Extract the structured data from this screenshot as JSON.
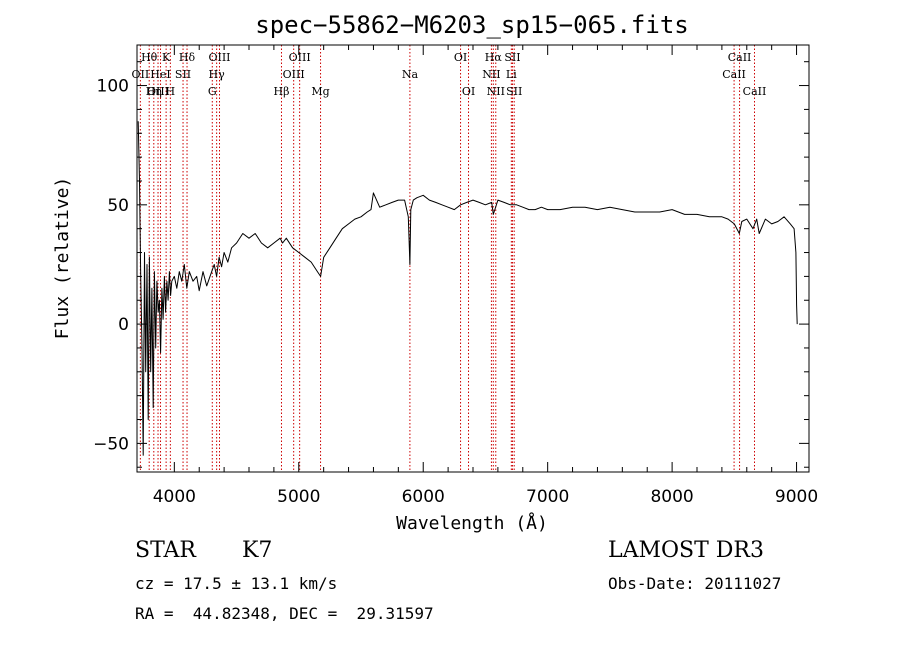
{
  "chart_data": {
    "type": "line",
    "title": "spec−55862−M6203_sp15−065.fits",
    "xlabel": "Wavelength (Å)",
    "ylabel": "Flux (relative)",
    "xlim": [
      3700,
      9100
    ],
    "ylim": [
      -62,
      117
    ],
    "xticks": [
      4000,
      5000,
      6000,
      7000,
      8000,
      9000
    ],
    "xtick_labels": [
      "4000",
      "5000",
      "6000",
      "7000",
      "8000",
      "9000"
    ],
    "yticks": [
      -50,
      0,
      50,
      100
    ],
    "ytick_labels": [
      "−50",
      "0",
      "50",
      "100"
    ],
    "line_color": "#000000",
    "marker_color": "#cc0000",
    "series": [
      {
        "name": "flux",
        "x": [
          3710,
          3720,
          3730,
          3740,
          3750,
          3760,
          3770,
          3780,
          3790,
          3800,
          3810,
          3820,
          3830,
          3840,
          3850,
          3860,
          3870,
          3880,
          3890,
          3900,
          3910,
          3920,
          3930,
          3940,
          3950,
          3960,
          3970,
          3980,
          4000,
          4020,
          4040,
          4060,
          4080,
          4100,
          4120,
          4150,
          4180,
          4200,
          4230,
          4260,
          4300,
          4320,
          4340,
          4360,
          4380,
          4400,
          4430,
          4460,
          4500,
          4550,
          4600,
          4650,
          4700,
          4750,
          4800,
          4850,
          4870,
          4900,
          4950,
          5000,
          5050,
          5100,
          5150,
          5175,
          5200,
          5250,
          5300,
          5350,
          5400,
          5450,
          5500,
          5550,
          5580,
          5600,
          5650,
          5700,
          5750,
          5800,
          5850,
          5880,
          5893,
          5900,
          5920,
          5950,
          6000,
          6050,
          6100,
          6150,
          6200,
          6250,
          6300,
          6350,
          6400,
          6450,
          6500,
          6550,
          6563,
          6600,
          6650,
          6700,
          6750,
          6800,
          6850,
          6900,
          6950,
          7000,
          7100,
          7200,
          7300,
          7400,
          7500,
          7600,
          7700,
          7800,
          7900,
          8000,
          8100,
          8200,
          8300,
          8400,
          8450,
          8500,
          8540,
          8560,
          8600,
          8650,
          8680,
          8700,
          8750,
          8800,
          8850,
          8900,
          8950,
          8980,
          8995,
          9000,
          9005
        ],
        "y": [
          85,
          60,
          20,
          -10,
          -55,
          30,
          -20,
          25,
          -40,
          28,
          -20,
          15,
          -35,
          22,
          -10,
          18,
          5,
          10,
          -12,
          15,
          2,
          20,
          5,
          18,
          10,
          22,
          12,
          18,
          20,
          15,
          22,
          18,
          25,
          15,
          22,
          18,
          20,
          14,
          22,
          16,
          22,
          25,
          20,
          28,
          24,
          30,
          26,
          32,
          34,
          38,
          36,
          38,
          34,
          32,
          34,
          36,
          34,
          36,
          32,
          30,
          28,
          26,
          22,
          20,
          28,
          32,
          36,
          40,
          42,
          44,
          45,
          47,
          48,
          55,
          49,
          50,
          51,
          52,
          52,
          45,
          25,
          48,
          52,
          53,
          54,
          52,
          51,
          50,
          49,
          48,
          50,
          51,
          52,
          51,
          50,
          51,
          46,
          52,
          51,
          50,
          50,
          49,
          48,
          48,
          49,
          48,
          48,
          49,
          49,
          48,
          49,
          48,
          47,
          47,
          47,
          48,
          46,
          46,
          45,
          45,
          44,
          42,
          38,
          43,
          44,
          40,
          44,
          38,
          44,
          42,
          43,
          45,
          42,
          40,
          30,
          8,
          0
        ]
      }
    ],
    "spectral_lines": [
      {
        "label": "Hθ",
        "wavelength": 3798,
        "row": 0
      },
      {
        "label": "OII",
        "wavelength": 3727,
        "row": 1
      },
      {
        "label": "OIII",
        "wavelength": 3869,
        "row": 2
      },
      {
        "label": "Hη",
        "wavelength": 3835,
        "row": 2
      },
      {
        "label": "HeI",
        "wavelength": 3889,
        "row": 1
      },
      {
        "label": "K",
        "wavelength": 3934,
        "row": 0
      },
      {
        "label": "H",
        "wavelength": 3968,
        "row": 2
      },
      {
        "label": "SII",
        "wavelength": 4070,
        "row": 1
      },
      {
        "label": "Hδ",
        "wavelength": 4102,
        "row": 0
      },
      {
        "label": "OIII",
        "wavelength": 4363,
        "row": 0
      },
      {
        "label": "Hγ",
        "wavelength": 4340,
        "row": 1
      },
      {
        "label": "G",
        "wavelength": 4305,
        "row": 2
      },
      {
        "label": "Hβ",
        "wavelength": 4861,
        "row": 2
      },
      {
        "label": "OIII",
        "wavelength": 5007,
        "row": 0
      },
      {
        "label": "OIII",
        "wavelength": 4959,
        "row": 1
      },
      {
        "label": "Mg",
        "wavelength": 5175,
        "row": 2
      },
      {
        "label": "Na",
        "wavelength": 5893,
        "row": 1
      },
      {
        "label": "OI",
        "wavelength": 6300,
        "row": 0
      },
      {
        "label": "OI",
        "wavelength": 6364,
        "row": 2
      },
      {
        "label": "Hα",
        "wavelength": 6563,
        "row": 0
      },
      {
        "label": "NII",
        "wavelength": 6548,
        "row": 1
      },
      {
        "label": "NII",
        "wavelength": 6583,
        "row": 2
      },
      {
        "label": "SII",
        "wavelength": 6717,
        "row": 0
      },
      {
        "label": "Li",
        "wavelength": 6708,
        "row": 1
      },
      {
        "label": "SII",
        "wavelength": 6731,
        "row": 2
      },
      {
        "label": "CaII",
        "wavelength": 8542,
        "row": 0
      },
      {
        "label": "CaII",
        "wavelength": 8498,
        "row": 1
      },
      {
        "label": "CaII",
        "wavelength": 8662,
        "row": 2
      }
    ]
  },
  "info": {
    "class_label": "STAR",
    "subclass": "K7",
    "survey": "LAMOST DR3",
    "cz_line": "cz = 17.5 ± 13.1 km/s",
    "obs_date": "Obs-Date: 20111027",
    "radec": "RA =  44.82348, DEC =  29.31597"
  }
}
